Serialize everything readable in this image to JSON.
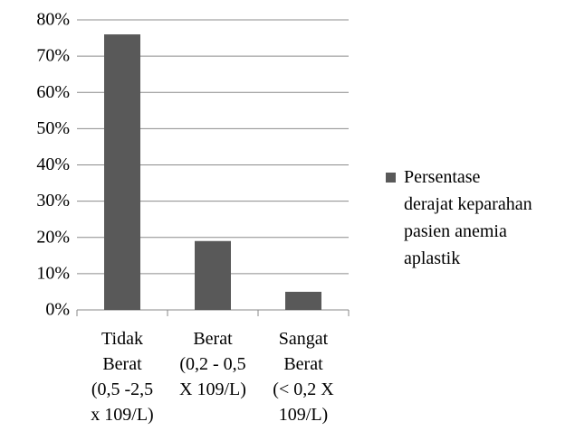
{
  "chart_data": {
    "type": "bar",
    "categories": [
      "Tidak\nBerat\n(0,5 -2,5\nx 109/L)",
      "Berat\n(0,2 - 0,5\nX 109/L)",
      "Sangat\nBerat\n(< 0,2 X\n109/L)"
    ],
    "series": [
      {
        "name": "Persentase\nderajat keparahan\npasien anemia\naplastik",
        "color": "#595959",
        "values": [
          76,
          19,
          5
        ]
      }
    ],
    "ylim": [
      0,
      80
    ],
    "yticks": [
      {
        "value": 0,
        "label": "0%"
      },
      {
        "value": 10,
        "label": "10%"
      },
      {
        "value": 20,
        "label": "20%"
      },
      {
        "value": 30,
        "label": "30%"
      },
      {
        "value": 40,
        "label": "40%"
      },
      {
        "value": 50,
        "label": "50%"
      },
      {
        "value": 60,
        "label": "60%"
      },
      {
        "value": 70,
        "label": "70%"
      },
      {
        "value": 80,
        "label": "80%"
      }
    ],
    "grid": true,
    "legend": "right"
  }
}
